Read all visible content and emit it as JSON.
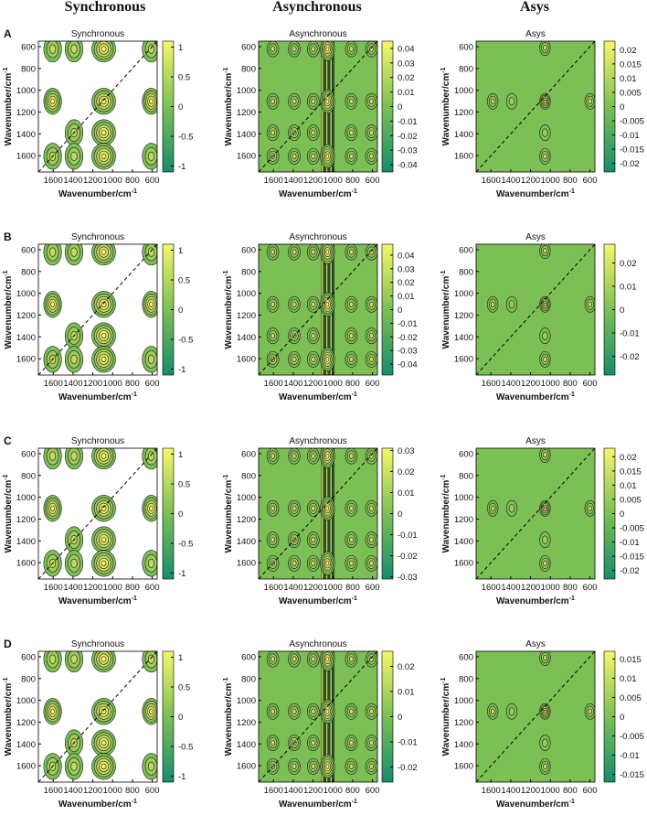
{
  "column_headers": [
    "Synchronous",
    "Asynchronous",
    "Asys"
  ],
  "axes": {
    "xlim": [
      1750,
      550
    ],
    "ylim": [
      550,
      1750
    ],
    "xticks": [
      1600,
      1400,
      1200,
      1000,
      800,
      600
    ],
    "yticks": [
      600,
      800,
      1000,
      1200,
      1400,
      1600
    ],
    "xlabel": "Wavenumber/cm",
    "ylabel": "Wavenumber/cm",
    "unit_sup": "-1"
  },
  "rows": [
    {
      "label": "A",
      "panels": [
        {
          "title": "Synchronous",
          "clim": [
            -1.1,
            1.1
          ],
          "colorbar_ticks": [
            1,
            0.5,
            0,
            -0.5,
            -1
          ]
        },
        {
          "title": "Asynchronous",
          "clim": [
            -0.045,
            0.045
          ],
          "colorbar_ticks": [
            0.04,
            0.03,
            0.02,
            0.01,
            0,
            -0.01,
            -0.02,
            -0.03,
            -0.04
          ]
        },
        {
          "title": "Asys",
          "clim": [
            -0.023,
            0.023
          ],
          "colorbar_ticks": [
            0.02,
            0.015,
            0.01,
            0.005,
            0,
            -0.005,
            -0.01,
            -0.015,
            -0.02
          ]
        }
      ]
    },
    {
      "label": "B",
      "panels": [
        {
          "title": "Synchronous",
          "clim": [
            -1.1,
            1.1
          ],
          "colorbar_ticks": [
            1,
            0.5,
            0,
            -0.5,
            -1
          ]
        },
        {
          "title": "Asynchronous",
          "clim": [
            -0.048,
            0.048
          ],
          "colorbar_ticks": [
            0.04,
            0.03,
            0.02,
            0.01,
            0,
            -0.01,
            -0.02,
            -0.03,
            -0.04
          ]
        },
        {
          "title": "Asys",
          "clim": [
            -0.028,
            0.028
          ],
          "colorbar_ticks": [
            0.02,
            0.01,
            0,
            -0.01,
            -0.02
          ]
        }
      ]
    },
    {
      "label": "C",
      "panels": [
        {
          "title": "Synchronous",
          "clim": [
            -1.1,
            1.1
          ],
          "colorbar_ticks": [
            1,
            0.5,
            0,
            -0.5,
            -1
          ]
        },
        {
          "title": "Asynchronous",
          "clim": [
            -0.031,
            0.031
          ],
          "colorbar_ticks": [
            0.03,
            0.02,
            0.01,
            0,
            -0.01,
            -0.02,
            -0.03
          ]
        },
        {
          "title": "Asys",
          "clim": [
            -0.023,
            0.023
          ],
          "colorbar_ticks": [
            0.02,
            0.015,
            0.01,
            0.005,
            0,
            -0.005,
            -0.01,
            -0.015,
            -0.02
          ]
        }
      ]
    },
    {
      "label": "D",
      "panels": [
        {
          "title": "Synchronous",
          "clim": [
            -1.1,
            1.1
          ],
          "colorbar_ticks": [
            1,
            0.5,
            0,
            -0.5,
            -1
          ]
        },
        {
          "title": "Asynchronous",
          "clim": [
            -0.026,
            0.026
          ],
          "colorbar_ticks": [
            0.02,
            0.01,
            0,
            -0.01,
            -0.02
          ]
        },
        {
          "title": "Asys",
          "clim": [
            -0.017,
            0.017
          ],
          "colorbar_ticks": [
            0.015,
            0.01,
            0.005,
            0,
            -0.005,
            -0.01,
            -0.015
          ]
        }
      ]
    }
  ]
}
